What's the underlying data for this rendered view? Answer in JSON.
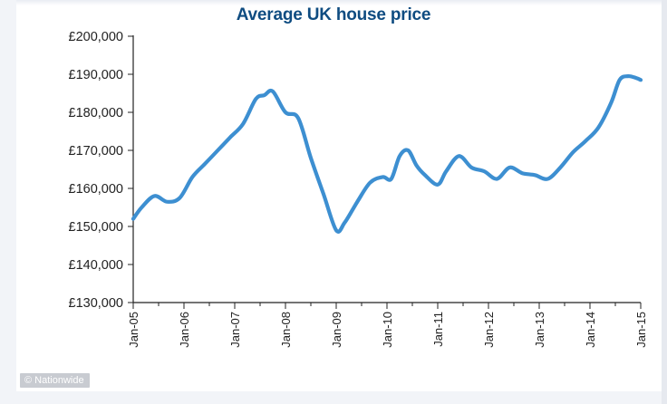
{
  "chart_data": {
    "type": "line",
    "title": "Average UK house price",
    "xlabel": "",
    "ylabel": "",
    "ylim": [
      130000,
      200000
    ],
    "y_ticks": [
      200000,
      190000,
      180000,
      170000,
      160000,
      150000,
      140000,
      130000
    ],
    "y_tick_labels": [
      "£200,000",
      "£190,000",
      "£180,000",
      "£170,000",
      "£160,000",
      "£150,000",
      "£140,000",
      "£130,000"
    ],
    "x_tick_labels": [
      "Jan-05",
      "Jan-06",
      "Jan-07",
      "Jan-08",
      "Jan-09",
      "Jan-10",
      "Jan-11",
      "Jan-12",
      "Jan-13",
      "Jan-14",
      "Jan-15"
    ],
    "grid": false,
    "line_color": "#3d8fd1",
    "series": [
      {
        "x": [
          "Jan-05",
          "Mar-05",
          "Jun-05",
          "Sep-05",
          "Dec-05",
          "Mar-06",
          "Jun-06",
          "Sep-06",
          "Dec-06",
          "Mar-07",
          "Jun-07",
          "Aug-07",
          "Oct-07",
          "Jan-08",
          "Apr-08",
          "Jul-08",
          "Oct-08",
          "Jan-09",
          "Mar-09",
          "Jun-09",
          "Sep-09",
          "Dec-09",
          "Feb-10",
          "Apr-10",
          "Jun-10",
          "Aug-10",
          "Oct-10",
          "Jan-11",
          "Mar-11",
          "Jun-11",
          "Sep-11",
          "Dec-11",
          "Mar-12",
          "Jun-12",
          "Sep-12",
          "Dec-12",
          "Mar-13",
          "Jun-13",
          "Sep-13",
          "Dec-13",
          "Mar-14",
          "Jun-14",
          "Aug-14",
          "Oct-14",
          "Dec-14",
          "Jan-15"
        ],
        "values": [
          152000,
          155000,
          158000,
          156500,
          157500,
          163000,
          166500,
          170000,
          173500,
          177000,
          183500,
          184500,
          185500,
          180000,
          178500,
          168000,
          158500,
          149000,
          151000,
          156500,
          161500,
          163000,
          162500,
          168500,
          170000,
          166000,
          163500,
          161000,
          164500,
          168500,
          165500,
          164500,
          162500,
          165500,
          164000,
          163500,
          162500,
          165500,
          169500,
          172500,
          176000,
          182500,
          188500,
          189500,
          189000,
          188500
        ]
      }
    ]
  },
  "watermark": "© Nationwide"
}
